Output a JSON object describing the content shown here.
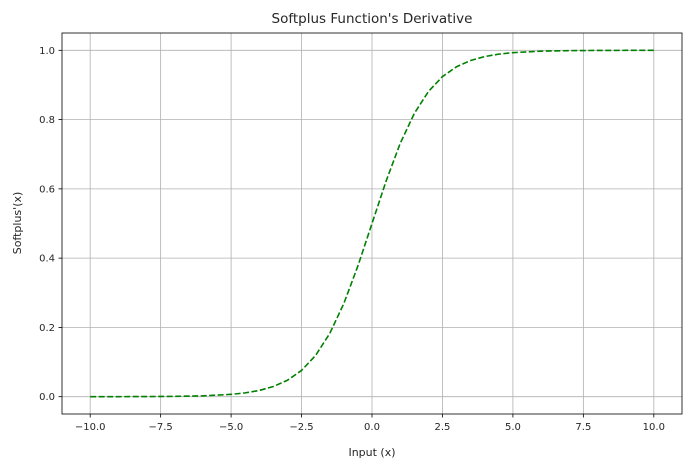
{
  "chart_data": {
    "type": "line",
    "title": "Softplus Function's Derivative",
    "xlabel": "Input (x)",
    "ylabel": "Softplus'(x)",
    "xlim": [
      -11.0,
      11.0
    ],
    "ylim": [
      -0.05,
      1.05
    ],
    "xticks": [
      -10.0,
      -7.5,
      -5.0,
      -2.5,
      0.0,
      2.5,
      5.0,
      7.5,
      10.0
    ],
    "xtick_labels": [
      "−10.0",
      "−7.5",
      "−5.0",
      "−2.5",
      "0.0",
      "2.5",
      "5.0",
      "7.5",
      "10.0"
    ],
    "yticks": [
      0.0,
      0.2,
      0.4,
      0.6,
      0.8,
      1.0
    ],
    "ytick_labels": [
      "0.0",
      "0.2",
      "0.4",
      "0.6",
      "0.8",
      "1.0"
    ],
    "grid": true,
    "series": [
      {
        "color": "#008000",
        "line_style": "dashed",
        "x": [
          -10,
          -9,
          -8,
          -7,
          -6,
          -5,
          -4.5,
          -4,
          -3.5,
          -3,
          -2.5,
          -2,
          -1.5,
          -1,
          -0.5,
          0,
          0.5,
          1,
          1.5,
          2,
          2.5,
          3,
          3.5,
          4,
          4.5,
          5,
          6,
          7,
          8,
          9,
          10
        ],
        "y": [
          4.5e-05,
          0.000123,
          0.000335,
          0.000911,
          0.002473,
          0.006693,
          0.010987,
          0.017986,
          0.029312,
          0.047426,
          0.075858,
          0.119203,
          0.182426,
          0.268941,
          0.377541,
          0.5,
          0.622459,
          0.731059,
          0.817574,
          0.880797,
          0.924142,
          0.952574,
          0.970688,
          0.982014,
          0.989013,
          0.993307,
          0.997527,
          0.999089,
          0.999665,
          0.999877,
          0.999955
        ]
      }
    ]
  }
}
